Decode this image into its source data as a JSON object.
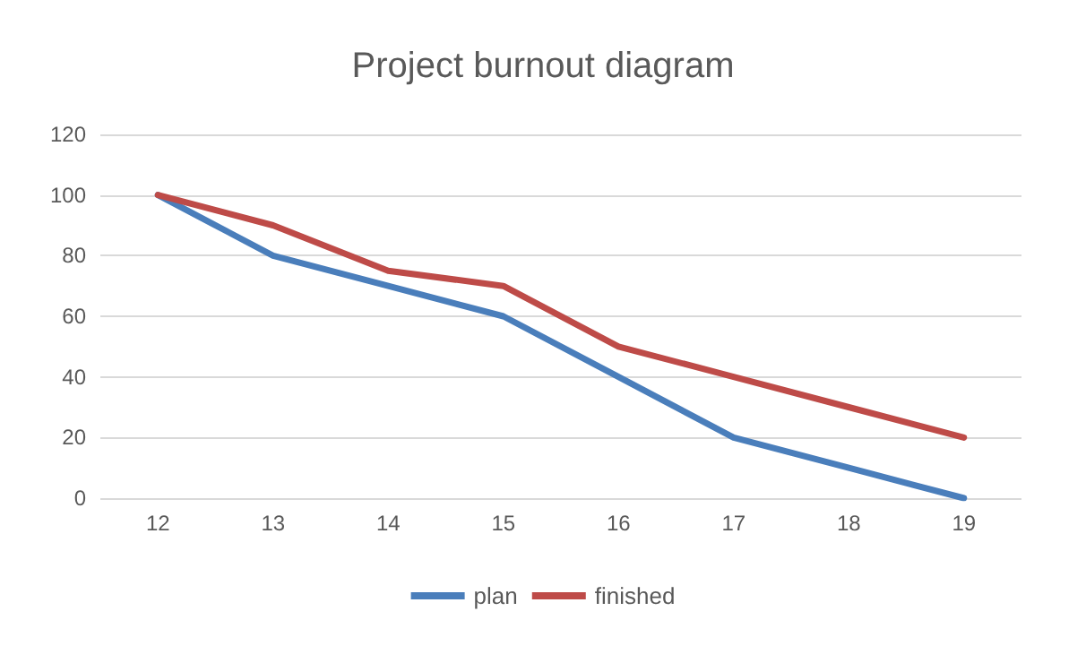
{
  "chart_data": {
    "type": "line",
    "title": "Project burnout diagram",
    "categories": [
      "12",
      "13",
      "14",
      "15",
      "16",
      "17",
      "18",
      "19"
    ],
    "series": [
      {
        "name": "plan",
        "color": "#4a7ebb",
        "values": [
          100,
          80,
          70,
          60,
          40,
          20,
          10,
          0
        ]
      },
      {
        "name": "finished",
        "color": "#be4b48",
        "values": [
          100,
          90,
          75,
          70,
          50,
          40,
          30,
          20
        ]
      }
    ],
    "ylim": [
      0,
      120
    ],
    "yticks": [
      0,
      20,
      40,
      60,
      80,
      100,
      120
    ],
    "grid": "y",
    "legend": "bottom",
    "marker": "none",
    "line_style": "solid"
  }
}
